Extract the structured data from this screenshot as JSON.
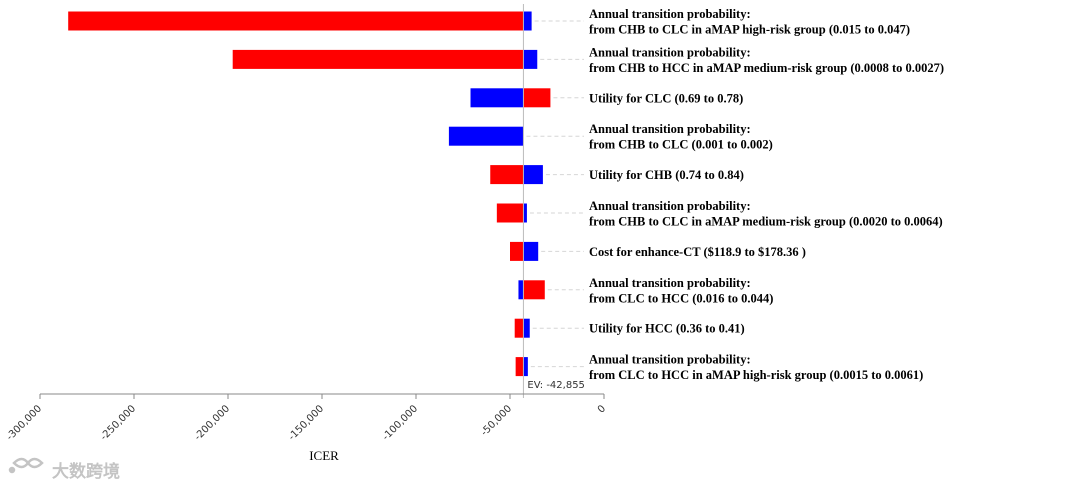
{
  "chart_data": {
    "type": "bar",
    "subtype": "tornado",
    "xlabel": "ICER",
    "xlim": [
      -300000,
      0
    ],
    "xticks": [
      "-300,000",
      "-250,000",
      "-200,000",
      "-150,000",
      "-100,000",
      "-50,000",
      "0"
    ],
    "xtick_values": [
      -300000,
      -250000,
      -200000,
      -150000,
      -100000,
      -50000,
      0
    ],
    "ev": -42855,
    "ev_label": "EV: -42,855",
    "colors": {
      "low": "#ff0000",
      "high": "#0000ff",
      "ev_line": "#bbbbbb"
    },
    "parameters": [
      {
        "lines": [
          "Annual transition probability:",
          "from CHB to CLC in aMAP high-risk group (0.015 to 0.047)"
        ],
        "red": [
          -285000,
          -42855
        ],
        "blue": [
          -42855,
          -38500
        ]
      },
      {
        "lines": [
          "Annual transition probability:",
          "from CHB to HCC in aMAP medium-risk group (0.0008 to 0.0027)"
        ],
        "red": [
          -197500,
          -42855
        ],
        "blue": [
          -42855,
          -35500
        ]
      },
      {
        "lines": [
          "Utility for CLC (0.69 to 0.78)"
        ],
        "red": [
          -42855,
          -28500
        ],
        "blue": [
          -71000,
          -42855
        ]
      },
      {
        "lines": [
          "Annual transition probability:",
          "from CHB to CLC (0.001 to 0.002)"
        ],
        "red": [
          -42855,
          -42855
        ],
        "blue": [
          -82500,
          -42855
        ]
      },
      {
        "lines": [
          "Utility for CHB (0.74 to 0.84)"
        ],
        "red": [
          -60500,
          -42855
        ],
        "blue": [
          -42855,
          -32500
        ]
      },
      {
        "lines": [
          "Annual transition probability:",
          "from CHB to CLC in aMAP medium-risk group (0.0020 to 0.0064)"
        ],
        "red": [
          -57000,
          -42855
        ],
        "blue": [
          -42855,
          -41000
        ]
      },
      {
        "lines": [
          "Cost for enhance-CT ($118.9 to $178.36 )"
        ],
        "red": [
          -50000,
          -42855
        ],
        "blue": [
          -42855,
          -35000
        ]
      },
      {
        "lines": [
          "Annual transition probability:",
          "from CLC to HCC (0.016 to 0.044)"
        ],
        "red": [
          -42855,
          -31500
        ],
        "blue": [
          -45500,
          -42855
        ]
      },
      {
        "lines": [
          "Utility for HCC (0.36 to 0.41)"
        ],
        "red": [
          -47500,
          -42855
        ],
        "blue": [
          -42855,
          -39500
        ]
      },
      {
        "lines": [
          "Annual transition probability:",
          "from CLC to HCC in aMAP high-risk group (0.0015 to 0.0061)"
        ],
        "red": [
          -47000,
          -42855
        ],
        "blue": [
          -42855,
          -40500
        ]
      }
    ]
  },
  "watermark": {
    "text": "大数跨境",
    "logo_icon": "infinity-logo-icon"
  }
}
